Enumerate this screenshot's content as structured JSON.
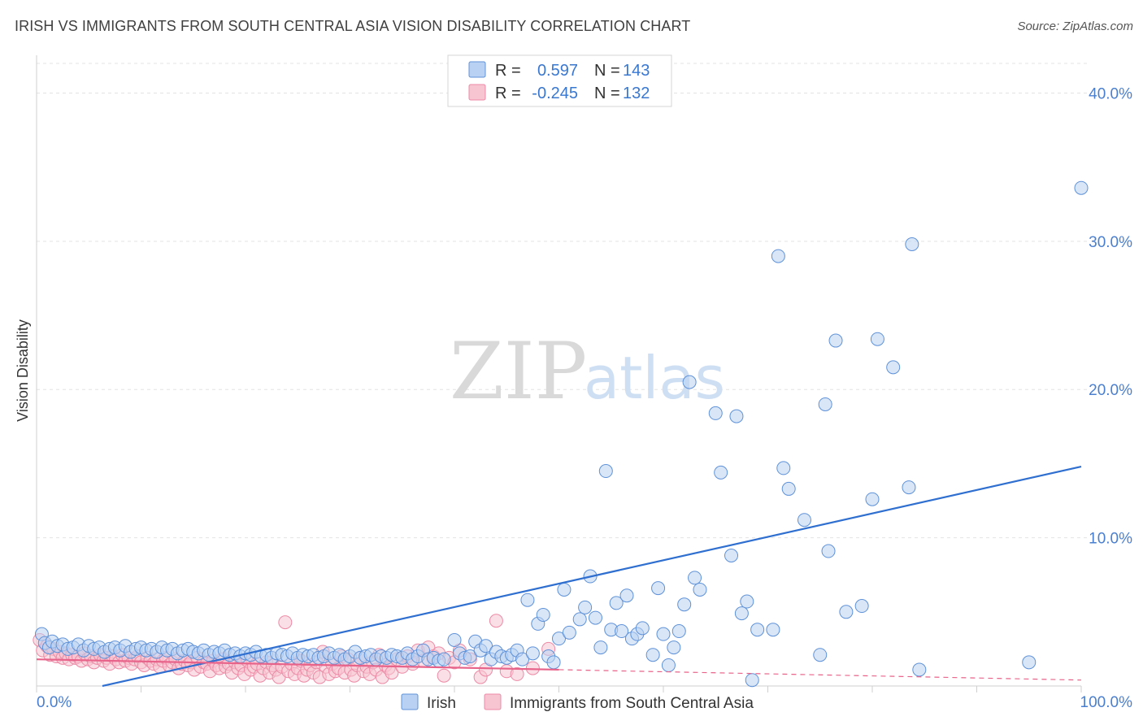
{
  "title": "IRISH VS IMMIGRANTS FROM SOUTH CENTRAL ASIA VISION DISABILITY CORRELATION CHART",
  "source": "Source: ZipAtlas.com",
  "watermark": {
    "zip": "ZIP",
    "atlas": "atlas"
  },
  "colors": {
    "irish_fill": "#b9d1f3",
    "irish_stroke": "#5f92d8",
    "irish_line": "#2f6fd0",
    "asia_fill": "#f7c4d2",
    "asia_stroke": "#ec8aa6",
    "asia_line": "#e8638a",
    "grid": "#e3e3e3",
    "tick_text": "#4a7fd0"
  },
  "legend": {
    "rows": [
      {
        "r_label": "R =",
        "r_value": "0.597",
        "n_label": "N =",
        "n_value": "143"
      },
      {
        "r_label": "R =",
        "r_value": "-0.245",
        "n_label": "N =",
        "n_value": "132"
      }
    ]
  },
  "chart_data": {
    "type": "scatter",
    "xlabel": "",
    "ylabel": "Vision Disability",
    "xlim": [
      0,
      100
    ],
    "ylim": [
      0,
      42
    ],
    "x_tick_labels": [
      "0.0%",
      "100.0%"
    ],
    "y_ticks": [
      10,
      20,
      30,
      40
    ],
    "y_tick_labels": [
      "10.0%",
      "20.0%",
      "30.0%",
      "40.0%"
    ],
    "grid": true,
    "legend_position": "top-center",
    "series": [
      {
        "name": "Irish",
        "R": 0.597,
        "N": 143,
        "trend": {
          "x": [
            6.3,
            100
          ],
          "y": [
            0,
            14.8
          ]
        },
        "points": [
          [
            0.5,
            3.5
          ],
          [
            0.8,
            2.9
          ],
          [
            1.2,
            2.6
          ],
          [
            1.5,
            3.0
          ],
          [
            2.0,
            2.7
          ],
          [
            2.5,
            2.8
          ],
          [
            3.0,
            2.5
          ],
          [
            3.5,
            2.6
          ],
          [
            4.0,
            2.8
          ],
          [
            4.5,
            2.4
          ],
          [
            5.0,
            2.7
          ],
          [
            5.5,
            2.5
          ],
          [
            6.0,
            2.6
          ],
          [
            6.5,
            2.3
          ],
          [
            7.0,
            2.5
          ],
          [
            7.5,
            2.6
          ],
          [
            8.0,
            2.4
          ],
          [
            8.5,
            2.7
          ],
          [
            9.0,
            2.3
          ],
          [
            9.5,
            2.5
          ],
          [
            10.0,
            2.6
          ],
          [
            10.5,
            2.4
          ],
          [
            11.0,
            2.5
          ],
          [
            11.5,
            2.3
          ],
          [
            12.0,
            2.6
          ],
          [
            12.5,
            2.4
          ],
          [
            13.0,
            2.5
          ],
          [
            13.5,
            2.2
          ],
          [
            14.0,
            2.4
          ],
          [
            14.5,
            2.5
          ],
          [
            15.0,
            2.3
          ],
          [
            15.5,
            2.2
          ],
          [
            16.0,
            2.4
          ],
          [
            16.5,
            2.1
          ],
          [
            17.0,
            2.3
          ],
          [
            17.5,
            2.2
          ],
          [
            18.0,
            2.4
          ],
          [
            18.5,
            2.1
          ],
          [
            19.0,
            2.2
          ],
          [
            19.5,
            2.0
          ],
          [
            20.0,
            2.2
          ],
          [
            20.5,
            2.1
          ],
          [
            21.0,
            2.3
          ],
          [
            21.5,
            2.0
          ],
          [
            22.0,
            2.1
          ],
          [
            22.5,
            1.9
          ],
          [
            23.0,
            2.2
          ],
          [
            23.5,
            2.1
          ],
          [
            24.0,
            2.0
          ],
          [
            24.5,
            2.2
          ],
          [
            25.0,
            1.9
          ],
          [
            25.5,
            2.1
          ],
          [
            26.0,
            2.0
          ],
          [
            26.5,
            2.1
          ],
          [
            27.0,
            1.9
          ],
          [
            27.5,
            2.0
          ],
          [
            28.0,
            2.2
          ],
          [
            28.5,
            1.9
          ],
          [
            29.0,
            2.1
          ],
          [
            29.5,
            1.8
          ],
          [
            30.0,
            2.0
          ],
          [
            30.5,
            2.3
          ],
          [
            31.0,
            1.9
          ],
          [
            31.5,
            2.0
          ],
          [
            32.0,
            2.1
          ],
          [
            32.5,
            1.8
          ],
          [
            33.0,
            2.0
          ],
          [
            33.5,
            1.9
          ],
          [
            34.0,
            2.1
          ],
          [
            34.5,
            2.0
          ],
          [
            35.0,
            1.9
          ],
          [
            35.5,
            2.2
          ],
          [
            36.0,
            1.8
          ],
          [
            36.5,
            2.0
          ],
          [
            37.0,
            2.4
          ],
          [
            37.5,
            1.8
          ],
          [
            38.0,
            1.9
          ],
          [
            38.5,
            1.7
          ],
          [
            39.0,
            1.8
          ],
          [
            40.0,
            3.1
          ],
          [
            40.5,
            2.2
          ],
          [
            41.0,
            1.9
          ],
          [
            41.5,
            2.0
          ],
          [
            42.0,
            3.0
          ],
          [
            42.5,
            2.4
          ],
          [
            43.0,
            2.7
          ],
          [
            43.5,
            1.8
          ],
          [
            44.0,
            2.3
          ],
          [
            44.5,
            2.0
          ],
          [
            45.0,
            1.9
          ],
          [
            45.5,
            2.1
          ],
          [
            46.0,
            2.4
          ],
          [
            46.5,
            1.8
          ],
          [
            47.0,
            5.8
          ],
          [
            47.5,
            2.2
          ],
          [
            48.0,
            4.2
          ],
          [
            48.5,
            4.8
          ],
          [
            49.0,
            2.0
          ],
          [
            49.5,
            1.6
          ],
          [
            50.0,
            3.2
          ],
          [
            50.5,
            6.5
          ],
          [
            51.0,
            3.6
          ],
          [
            52.0,
            4.5
          ],
          [
            52.5,
            5.3
          ],
          [
            53.5,
            4.6
          ],
          [
            53.0,
            7.4
          ],
          [
            54.0,
            2.6
          ],
          [
            54.5,
            14.5
          ],
          [
            55.0,
            3.8
          ],
          [
            55.5,
            5.6
          ],
          [
            56.0,
            3.7
          ],
          [
            56.5,
            6.1
          ],
          [
            57.0,
            3.2
          ],
          [
            57.5,
            3.5
          ],
          [
            58.0,
            3.9
          ],
          [
            59.0,
            2.1
          ],
          [
            59.5,
            6.6
          ],
          [
            60.0,
            3.5
          ],
          [
            60.5,
            1.4
          ],
          [
            61.0,
            2.6
          ],
          [
            61.5,
            3.7
          ],
          [
            62.0,
            5.5
          ],
          [
            62.5,
            20.5
          ],
          [
            63.0,
            7.3
          ],
          [
            63.5,
            6.5
          ],
          [
            65.0,
            18.4
          ],
          [
            65.5,
            14.4
          ],
          [
            66.5,
            8.8
          ],
          [
            67.0,
            18.2
          ],
          [
            67.5,
            4.9
          ],
          [
            68.0,
            5.7
          ],
          [
            68.5,
            0.4
          ],
          [
            69.0,
            3.8
          ],
          [
            70.5,
            3.8
          ],
          [
            71.0,
            29.0
          ],
          [
            71.5,
            14.7
          ],
          [
            72.0,
            13.3
          ],
          [
            73.5,
            11.2
          ],
          [
            75.0,
            2.1
          ],
          [
            75.5,
            19.0
          ],
          [
            75.8,
            9.1
          ],
          [
            76.5,
            23.3
          ],
          [
            77.5,
            5.0
          ],
          [
            79.0,
            5.4
          ],
          [
            80.0,
            12.6
          ],
          [
            80.5,
            23.4
          ],
          [
            82.0,
            21.5
          ],
          [
            83.5,
            13.4
          ],
          [
            83.8,
            29.8
          ],
          [
            84.5,
            1.1
          ],
          [
            95.0,
            1.6
          ],
          [
            100.0,
            33.6
          ]
        ]
      },
      {
        "name": "Immigrants from South Central Asia",
        "R": -0.245,
        "N": 132,
        "trend": {
          "x": [
            0,
            50
          ],
          "y": [
            1.8,
            1.1
          ]
        },
        "trend_dashed": {
          "x": [
            50,
            100
          ],
          "y": [
            1.1,
            0.4
          ]
        },
        "points": [
          [
            0.3,
            3.1
          ],
          [
            0.6,
            2.4
          ],
          [
            1.0,
            2.7
          ],
          [
            1.3,
            2.1
          ],
          [
            1.6,
            2.5
          ],
          [
            1.9,
            2.0
          ],
          [
            2.2,
            2.3
          ],
          [
            2.5,
            1.9
          ],
          [
            2.8,
            2.2
          ],
          [
            3.1,
            1.8
          ],
          [
            3.4,
            2.1
          ],
          [
            3.7,
            1.9
          ],
          [
            4.0,
            2.0
          ],
          [
            4.3,
            1.7
          ],
          [
            4.6,
            2.2
          ],
          [
            4.9,
            1.8
          ],
          [
            5.2,
            2.0
          ],
          [
            5.5,
            1.6
          ],
          [
            5.8,
            1.9
          ],
          [
            6.1,
            2.1
          ],
          [
            6.4,
            1.7
          ],
          [
            6.7,
            1.9
          ],
          [
            7.0,
            1.5
          ],
          [
            7.3,
            2.0
          ],
          [
            7.6,
            1.8
          ],
          [
            7.9,
            1.6
          ],
          [
            8.2,
            2.1
          ],
          [
            8.5,
            1.7
          ],
          [
            8.8,
            1.9
          ],
          [
            9.1,
            1.5
          ],
          [
            9.4,
            1.8
          ],
          [
            9.7,
            2.0
          ],
          [
            10.0,
            1.6
          ],
          [
            10.3,
            1.4
          ],
          [
            10.6,
            1.9
          ],
          [
            10.9,
            1.7
          ],
          [
            11.2,
            1.5
          ],
          [
            11.5,
            1.8
          ],
          [
            11.8,
            1.3
          ],
          [
            12.1,
            1.7
          ],
          [
            12.4,
            1.9
          ],
          [
            12.7,
            1.4
          ],
          [
            13.0,
            1.6
          ],
          [
            13.3,
            1.8
          ],
          [
            13.6,
            1.2
          ],
          [
            13.9,
            1.5
          ],
          [
            14.2,
            1.7
          ],
          [
            14.5,
            1.4
          ],
          [
            14.8,
            1.6
          ],
          [
            15.1,
            1.1
          ],
          [
            15.4,
            1.9
          ],
          [
            15.7,
            1.3
          ],
          [
            16.0,
            1.6
          ],
          [
            16.3,
            1.5
          ],
          [
            16.6,
            1.0
          ],
          [
            16.9,
            1.7
          ],
          [
            17.2,
            1.4
          ],
          [
            17.5,
            1.2
          ],
          [
            17.8,
            1.8
          ],
          [
            18.1,
            1.3
          ],
          [
            18.4,
            1.5
          ],
          [
            18.7,
            0.9
          ],
          [
            19.0,
            1.6
          ],
          [
            19.3,
            1.2
          ],
          [
            19.6,
            1.4
          ],
          [
            19.9,
            0.8
          ],
          [
            20.2,
            1.7
          ],
          [
            20.5,
            1.1
          ],
          [
            20.8,
            1.3
          ],
          [
            21.1,
            1.5
          ],
          [
            21.4,
            0.7
          ],
          [
            21.7,
            1.2
          ],
          [
            22.0,
            1.6
          ],
          [
            22.3,
            0.9
          ],
          [
            22.6,
            1.4
          ],
          [
            22.9,
            1.1
          ],
          [
            23.2,
            0.6
          ],
          [
            23.5,
            1.3
          ],
          [
            23.8,
            4.3
          ],
          [
            24.1,
            1.0
          ],
          [
            24.4,
            1.5
          ],
          [
            24.7,
            0.8
          ],
          [
            25.0,
            1.2
          ],
          [
            25.3,
            1.7
          ],
          [
            25.6,
            0.7
          ],
          [
            25.9,
            1.1
          ],
          [
            26.2,
            1.4
          ],
          [
            26.5,
            0.9
          ],
          [
            26.8,
            1.6
          ],
          [
            27.1,
            0.6
          ],
          [
            27.4,
            2.3
          ],
          [
            27.7,
            1.3
          ],
          [
            28.0,
            0.8
          ],
          [
            28.3,
            1.5
          ],
          [
            28.6,
            1.0
          ],
          [
            28.9,
            1.2
          ],
          [
            29.2,
            2.0
          ],
          [
            29.5,
            0.9
          ],
          [
            29.8,
            1.8
          ],
          [
            30.1,
            1.1
          ],
          [
            30.4,
            0.7
          ],
          [
            30.7,
            1.4
          ],
          [
            31.0,
            1.9
          ],
          [
            31.3,
            1.0
          ],
          [
            31.6,
            1.3
          ],
          [
            31.9,
            0.8
          ],
          [
            32.2,
            1.6
          ],
          [
            32.5,
            1.1
          ],
          [
            32.8,
            2.1
          ],
          [
            33.1,
            0.6
          ],
          [
            33.4,
            1.4
          ],
          [
            33.7,
            1.2
          ],
          [
            34.0,
            0.9
          ],
          [
            34.5,
            1.8
          ],
          [
            35.0,
            1.3
          ],
          [
            35.5,
            2.0
          ],
          [
            36.0,
            1.5
          ],
          [
            36.5,
            2.4
          ],
          [
            37.0,
            1.7
          ],
          [
            37.5,
            2.6
          ],
          [
            38.0,
            2.0
          ],
          [
            38.5,
            2.2
          ],
          [
            39.0,
            0.7
          ],
          [
            39.5,
            1.9
          ],
          [
            40.0,
            1.6
          ],
          [
            40.5,
            2.4
          ],
          [
            41.5,
            1.8
          ],
          [
            42.5,
            0.6
          ],
          [
            43.0,
            1.1
          ],
          [
            44.0,
            4.4
          ],
          [
            45.0,
            1.0
          ],
          [
            46.0,
            0.8
          ],
          [
            47.5,
            1.2
          ],
          [
            49.0,
            2.5
          ]
        ]
      }
    ]
  }
}
